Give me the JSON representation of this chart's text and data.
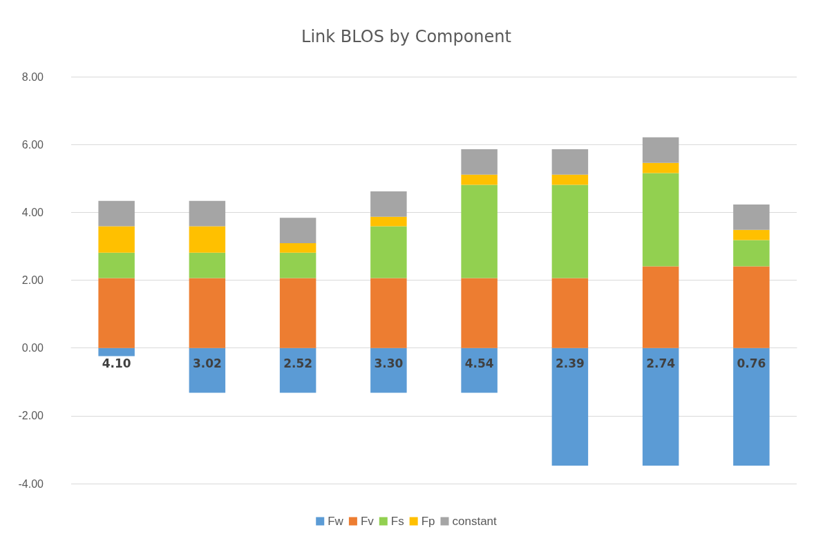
{
  "chart_data": {
    "type": "bar",
    "title": "Link BLOS by Component",
    "stacked": true,
    "categories": [
      null,
      null,
      null,
      null,
      null,
      null,
      null,
      null
    ],
    "series": [
      {
        "name": "Fw",
        "color": "#5b9bd5",
        "values": [
          -0.24,
          -1.32,
          -1.32,
          -1.32,
          -1.32,
          -3.47,
          -3.47,
          -3.47
        ]
      },
      {
        "name": "Fv",
        "color": "#ed7d31",
        "values": [
          2.06,
          2.06,
          2.06,
          2.06,
          2.06,
          2.06,
          2.41,
          2.41
        ]
      },
      {
        "name": "Fs",
        "color": "#92d050",
        "values": [
          0.75,
          0.75,
          0.75,
          1.53,
          2.75,
          2.75,
          2.75,
          0.77
        ]
      },
      {
        "name": "Fp",
        "color": "#ffc000",
        "values": [
          0.78,
          0.78,
          0.28,
          0.28,
          0.3,
          0.3,
          0.3,
          0.3
        ]
      },
      {
        "name": "constant",
        "color": "#a5a5a5",
        "values": [
          0.75,
          0.75,
          0.75,
          0.75,
          0.75,
          0.75,
          0.75,
          0.75
        ]
      }
    ],
    "totals": [
      "4.10",
      "3.02",
      "2.52",
      "3.30",
      "4.54",
      "2.39",
      "2.74",
      "0.76"
    ],
    "ylim": [
      -4,
      8
    ],
    "yticks": [
      {
        "value": -4,
        "label": "-4.00"
      },
      {
        "value": -2,
        "label": "-2.00"
      },
      {
        "value": 0,
        "label": "0.00"
      },
      {
        "value": 2,
        "label": "2.00"
      },
      {
        "value": 4,
        "label": "4.00"
      },
      {
        "value": 6,
        "label": "6.00"
      },
      {
        "value": 8,
        "label": "8.00"
      }
    ],
    "grid": true,
    "legend": "bottom"
  }
}
